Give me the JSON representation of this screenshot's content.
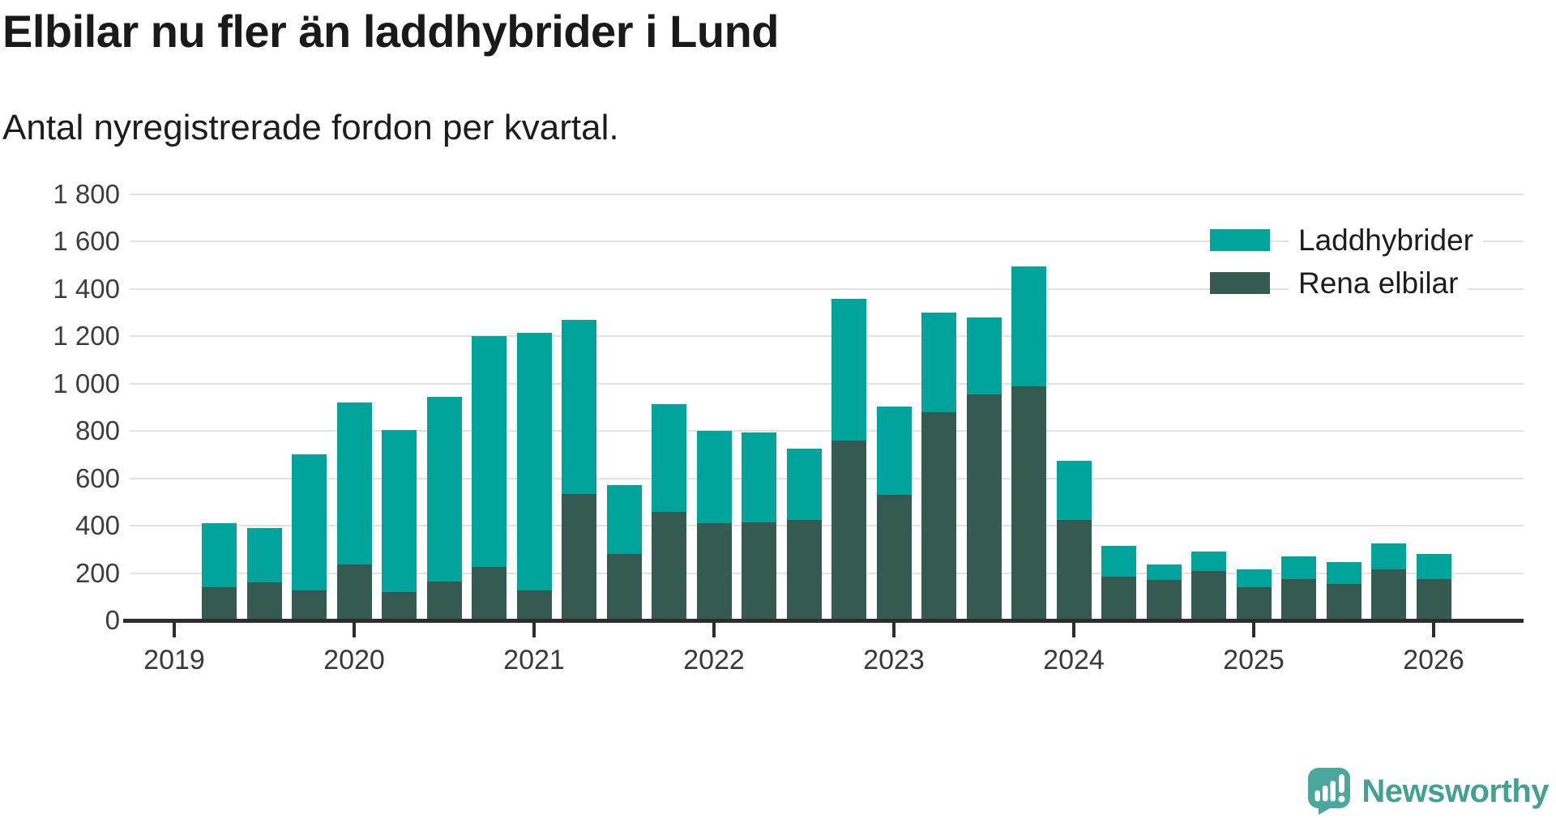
{
  "title": "Elbilar nu fler än laddhybrider i Lund",
  "subtitle": "Antal nyregistrerade fordon per kvartal.",
  "legend": {
    "items": [
      {
        "label": "Laddhybrider",
        "color": "#00a49a"
      },
      {
        "label": "Rena elbilar",
        "color": "#345a51"
      }
    ]
  },
  "footer": {
    "brand": "Newsworthy",
    "logo_icon": "speech-bubble-bar-chart-icon",
    "brand_color": "#42a192",
    "icon_color": "#4aa79c"
  },
  "colors": {
    "laddhybrider": "#00a49a",
    "rena_elbilar": "#345a51",
    "gridline": "#e1e1e1",
    "axis": "#2d2d2d",
    "text": "#1a1a1a"
  },
  "chart_data": {
    "type": "bar",
    "stacked": true,
    "title": "Elbilar nu fler än laddhybrider i Lund",
    "subtitle": "Antal nyregistrerade fordon per kvartal.",
    "xlabel": "",
    "ylabel": "",
    "ylim": [
      0,
      1800
    ],
    "grid": true,
    "legend_position": "top-right",
    "categories": [
      "2019 Q2",
      "2019 Q3",
      "2019 Q4",
      "2020 Q1",
      "2020 Q2",
      "2020 Q3",
      "2020 Q4",
      "2021 Q1",
      "2021 Q2",
      "2021 Q3",
      "2021 Q4",
      "2022 Q1",
      "2022 Q2",
      "2022 Q3",
      "2022 Q4",
      "2023 Q1",
      "2023 Q2",
      "2023 Q3",
      "2023 Q4",
      "2024 Q1",
      "2024 Q2",
      "2024 Q3",
      "2024 Q4",
      "2025 Q1",
      "2025 Q2",
      "2025 Q3",
      "2025 Q4",
      "2026 Q1"
    ],
    "series": [
      {
        "name": "Rena elbilar",
        "color": "#345a51",
        "stack_order": "bottom",
        "values": [
          140,
          160,
          125,
          235,
          120,
          165,
          225,
          125,
          535,
          280,
          460,
          410,
          415,
          425,
          760,
          530,
          880,
          955,
          990,
          425,
          185,
          170,
          210,
          140,
          175,
          155,
          215,
          175
        ]
      },
      {
        "name": "Laddhybrider",
        "color": "#00a49a",
        "stack_order": "top",
        "values": [
          270,
          230,
          575,
          685,
          685,
          780,
          975,
          1090,
          735,
          290,
          455,
          390,
          380,
          300,
          600,
          375,
          420,
          325,
          505,
          250,
          130,
          65,
          80,
          75,
          95,
          90,
          110,
          105
        ]
      }
    ],
    "stack_totals": [
      410,
      390,
      700,
      920,
      805,
      945,
      1200,
      1215,
      1270,
      570,
      915,
      800,
      795,
      725,
      1360,
      905,
      1300,
      1280,
      1495,
      675,
      315,
      235,
      290,
      215,
      270,
      245,
      325,
      280
    ],
    "y_ticks": [
      {
        "value": 0,
        "label": "0"
      },
      {
        "value": 200,
        "label": "200"
      },
      {
        "value": 400,
        "label": "400"
      },
      {
        "value": 600,
        "label": "600"
      },
      {
        "value": 800,
        "label": "800"
      },
      {
        "value": 1000,
        "label": "1 000"
      },
      {
        "value": 1200,
        "label": "1 200"
      },
      {
        "value": 1400,
        "label": "1 400"
      },
      {
        "value": 1600,
        "label": "1 600"
      },
      {
        "value": 1800,
        "label": "1 800"
      }
    ],
    "x_ticks": [
      "2019",
      "2020",
      "2021",
      "2022",
      "2023",
      "2024",
      "2025",
      "2026"
    ]
  }
}
